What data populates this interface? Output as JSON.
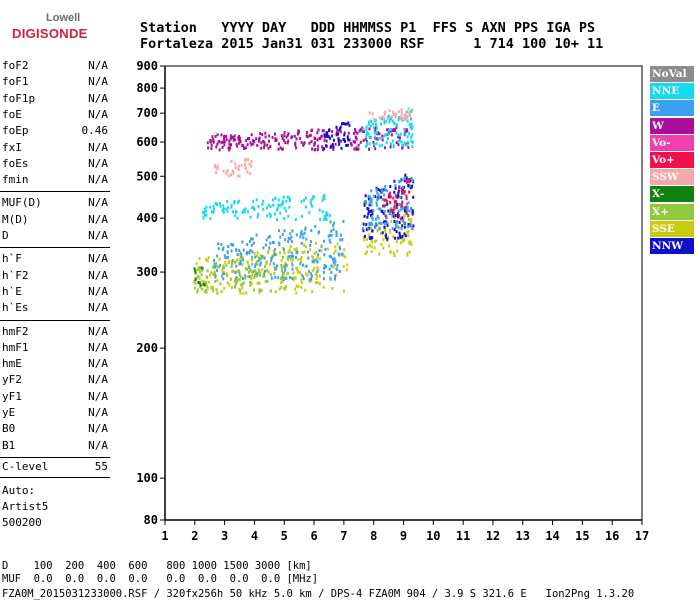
{
  "logo": {
    "top": "Lowell",
    "bottom": "DIGISONDE"
  },
  "header": {
    "line1": "Station   YYYY DAY   DDD HHMMSS P1  FFS S AXN PPS IGA PS",
    "line2": "Fortaleza 2015 Jan31 031 233000 RSF      1 714 100 10+ 11"
  },
  "params": {
    "group1": [
      {
        "name": "foF2",
        "value": "N/A"
      },
      {
        "name": "foF1",
        "value": "N/A"
      },
      {
        "name": "foF1p",
        "value": "N/A"
      },
      {
        "name": "foE",
        "value": "N/A"
      },
      {
        "name": "foEp",
        "value": "0.46"
      },
      {
        "name": "fxI",
        "value": "N/A"
      },
      {
        "name": "foEs",
        "value": "N/A"
      },
      {
        "name": "fmin",
        "value": "N/A"
      }
    ],
    "group2": [
      {
        "name": "MUF(D)",
        "value": "N/A"
      },
      {
        "name": "M(D)",
        "value": "N/A"
      },
      {
        "name": "D",
        "value": "N/A"
      }
    ],
    "group3": [
      {
        "name": "h`F",
        "value": "N/A"
      },
      {
        "name": "h`F2",
        "value": "N/A"
      },
      {
        "name": "h`E",
        "value": "N/A"
      },
      {
        "name": "h`Es",
        "value": "N/A"
      }
    ],
    "group4": [
      {
        "name": "hmF2",
        "value": "N/A"
      },
      {
        "name": "hmF1",
        "value": "N/A"
      },
      {
        "name": "hmE",
        "value": "N/A"
      },
      {
        "name": "yF2",
        "value": "N/A"
      },
      {
        "name": "yF1",
        "value": "N/A"
      },
      {
        "name": "yE",
        "value": "N/A"
      },
      {
        "name": "B0",
        "value": "N/A"
      },
      {
        "name": "B1",
        "value": "N/A"
      }
    ],
    "clevel": {
      "name": "C-level",
      "value": "55"
    }
  },
  "auto": {
    "line1": "Auto:",
    "line2": "Artist5",
    "line3": "500200"
  },
  "legend": [
    {
      "label": "NoVal",
      "color": "#8c8c8c"
    },
    {
      "label": "NNE",
      "color": "#18d8f0"
    },
    {
      "label": "E",
      "color": "#3ca0f0"
    },
    {
      "label": "W",
      "color": "#a8109c"
    },
    {
      "label": "Vo-",
      "color": "#f040b0"
    },
    {
      "label": "Vo+",
      "color": "#f0104c"
    },
    {
      "label": "SSW",
      "color": "#f4a8a8"
    },
    {
      "label": "X-",
      "color": "#108010"
    },
    {
      "label": "X+",
      "color": "#90c840"
    },
    {
      "label": "SSE",
      "color": "#c8cc10"
    },
    {
      "label": "NNW",
      "color": "#1010c8"
    }
  ],
  "footer": {
    "line1": "D    100  200  400  600   800 1000 1500 3000 [km]",
    "line2": "MUF  0.0  0.0  0.0  0.0   0.0  0.0  0.0  0.0 [MHz]",
    "line3": "FZA0M_2015031233000.RSF / 320fx256h 50 kHz 5.0 km / DPS-4 FZA0M 904 / 3.9 S 321.6 E   Ion2Png 1.3.20"
  },
  "chart_data": {
    "type": "scatter",
    "xlim": [
      1,
      17
    ],
    "ylim": [
      80,
      900
    ],
    "yscale": "log",
    "xticks": [
      "1",
      "2",
      "3",
      "4",
      "5",
      "6",
      "7",
      "8",
      "9",
      "10",
      "11",
      "12",
      "13",
      "14",
      "15",
      "16",
      "17"
    ],
    "yticks": [
      "80",
      "100",
      "200",
      "300",
      "400",
      "500",
      "600",
      "700",
      "800",
      "900"
    ],
    "grid": false,
    "clusters": [
      {
        "label": "SSE",
        "x": [
          1.9,
          7.1
        ],
        "y": [
          270,
          360
        ]
      },
      {
        "label": "E",
        "x": [
          2.6,
          7.0
        ],
        "y": [
          290,
          400
        ]
      },
      {
        "label": "X+",
        "x": [
          2.0,
          5.2
        ],
        "y": [
          270,
          340
        ]
      },
      {
        "label": "SSE",
        "x": [
          7.6,
          9.3
        ],
        "y": [
          330,
          420
        ]
      },
      {
        "label": "NNW",
        "x": [
          7.6,
          9.3
        ],
        "y": [
          360,
          520
        ]
      },
      {
        "label": "E",
        "x": [
          7.6,
          9.3
        ],
        "y": [
          380,
          510
        ]
      },
      {
        "label": "W",
        "x": [
          2.4,
          9.2
        ],
        "y": [
          580,
          660
        ]
      },
      {
        "label": "NNW",
        "x": [
          6.3,
          7.2
        ],
        "y": [
          580,
          680
        ]
      },
      {
        "label": "NNE",
        "x": [
          7.6,
          9.3
        ],
        "y": [
          590,
          720
        ]
      },
      {
        "label": "SSW",
        "x": [
          7.8,
          9.2
        ],
        "y": [
          680,
          730
        ]
      },
      {
        "label": "SSW",
        "x": [
          2.6,
          3.9
        ],
        "y": [
          500,
          560
        ]
      },
      {
        "label": "Vo+",
        "x": [
          8.3,
          9.2
        ],
        "y": [
          400,
          500
        ]
      },
      {
        "label": "X-",
        "x": [
          1.8,
          2.3
        ],
        "y": [
          280,
          320
        ]
      },
      {
        "label": "NNE",
        "x": [
          2.2,
          6.5
        ],
        "y": [
          400,
          460
        ]
      }
    ]
  }
}
